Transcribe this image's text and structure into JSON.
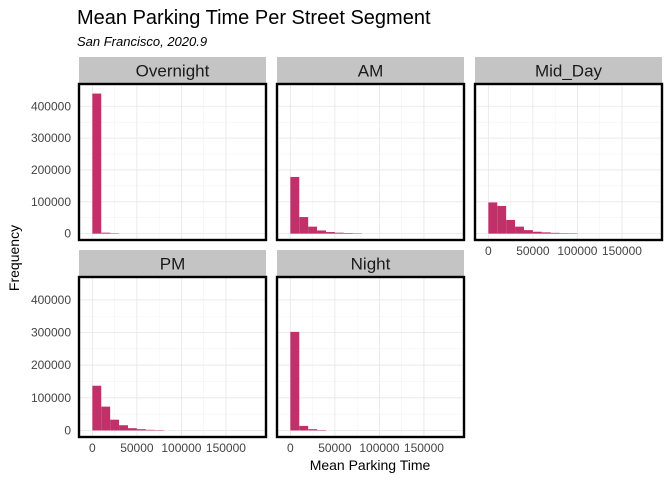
{
  "chart_data": {
    "type": "bar",
    "title": "Mean Parking Time Per Street Segment",
    "subtitle": "San Francisco, 2020.9",
    "xlabel": "Mean Parking Time",
    "ylabel": "Frequency",
    "xlim": [
      -15000,
      195000
    ],
    "ylim": [
      -20000,
      470000
    ],
    "x_ticks": [
      0,
      50000,
      100000,
      150000
    ],
    "x_tick_labels": [
      "0",
      "50000",
      "100000",
      "150000"
    ],
    "y_ticks": [
      0,
      100000,
      200000,
      300000,
      400000
    ],
    "y_tick_labels": [
      "0",
      "100000",
      "200000",
      "300000",
      "400000"
    ],
    "bin_width": 10000,
    "grid": true,
    "bar_color": "#c2306a",
    "panels": [
      {
        "name": "Overnight",
        "bins": [
          [
            0,
            440000
          ],
          [
            10000,
            3000
          ],
          [
            20000,
            1000
          ]
        ]
      },
      {
        "name": "AM",
        "bins": [
          [
            0,
            178000
          ],
          [
            10000,
            52000
          ],
          [
            20000,
            22000
          ],
          [
            30000,
            10000
          ],
          [
            40000,
            5000
          ],
          [
            50000,
            3000
          ],
          [
            60000,
            2000
          ],
          [
            70000,
            1000
          ]
        ]
      },
      {
        "name": "Mid_Day",
        "bins": [
          [
            0,
            98000
          ],
          [
            10000,
            87000
          ],
          [
            20000,
            43000
          ],
          [
            30000,
            22000
          ],
          [
            40000,
            11000
          ],
          [
            50000,
            6000
          ],
          [
            60000,
            4000
          ],
          [
            70000,
            2500
          ],
          [
            80000,
            1500
          ],
          [
            90000,
            1000
          ]
        ]
      },
      {
        "name": "PM",
        "bins": [
          [
            0,
            137000
          ],
          [
            10000,
            73000
          ],
          [
            20000,
            33000
          ],
          [
            30000,
            16000
          ],
          [
            40000,
            7000
          ],
          [
            50000,
            4000
          ],
          [
            60000,
            2000
          ],
          [
            70000,
            1000
          ]
        ]
      },
      {
        "name": "Night",
        "bins": [
          [
            0,
            302000
          ],
          [
            10000,
            14000
          ],
          [
            20000,
            4000
          ],
          [
            30000,
            1500
          ]
        ]
      }
    ]
  }
}
